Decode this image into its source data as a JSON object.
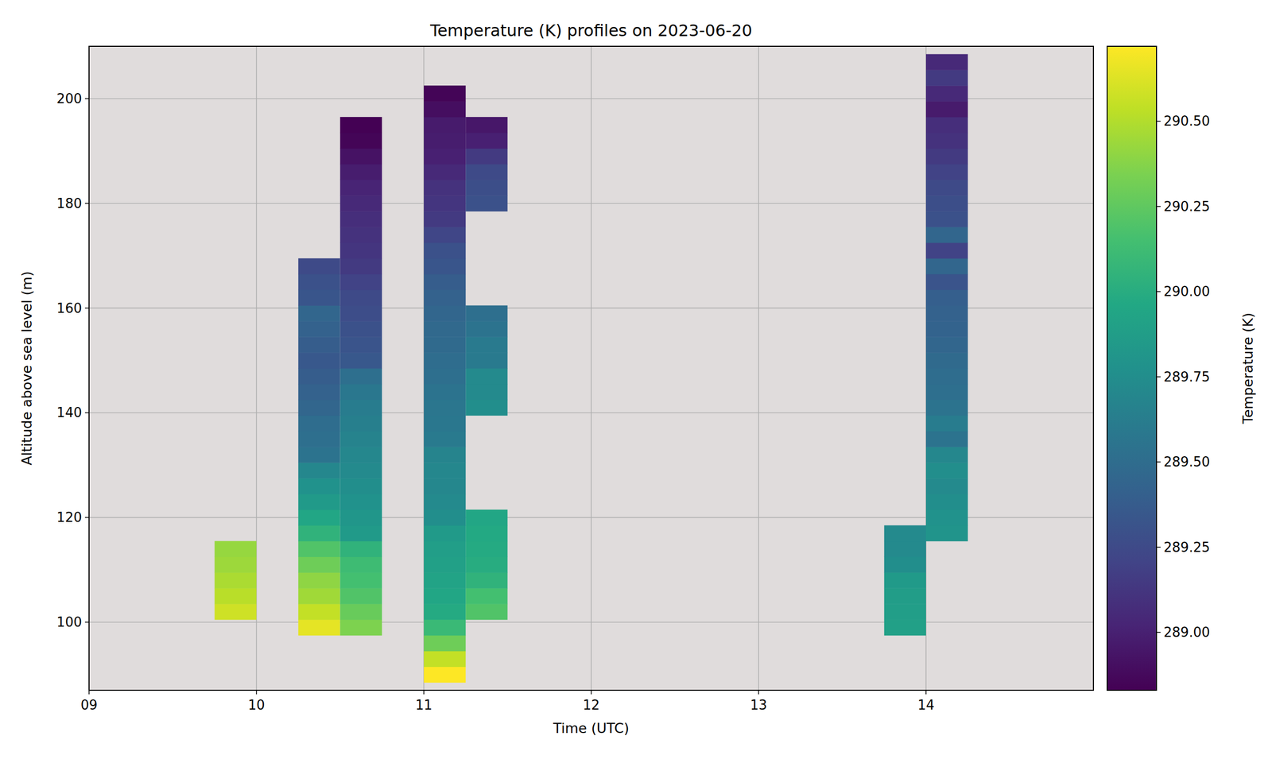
{
  "chart_data": {
    "type": "heatmap",
    "title": "Temperature (K) profiles on 2023-06-20",
    "x_label": "Time (UTC)",
    "y_label": "Altitude above sea level (m)",
    "xlim": [
      9,
      15
    ],
    "xticks": [
      {
        "value": 9,
        "label": "09"
      },
      10,
      11,
      12,
      13,
      14
    ],
    "ylim": [
      87,
      210
    ],
    "yticks": [
      100,
      120,
      140,
      160,
      180,
      200
    ],
    "grid": true,
    "colorbar": {
      "label": "Temperature (K)",
      "range": [
        288.83,
        290.72
      ],
      "ticks": [
        {
          "value": 289,
          "label": "289.00"
        },
        {
          "value": 289.25,
          "label": "289.25"
        },
        {
          "value": 289.5,
          "label": "289.50"
        },
        {
          "value": 289.75,
          "label": "289.75"
        },
        {
          "value": 290,
          "label": "290.00"
        },
        {
          "value": 290.25,
          "label": "290.25"
        },
        {
          "value": 290.5,
          "label": "290.50"
        }
      ]
    },
    "columns": [
      {
        "x0": 9.75,
        "x1": 10,
        "y_edges": [
          100.5,
          103.5,
          106.5,
          109.5,
          112.5,
          115.5
        ],
        "values": [
          290.58,
          290.52,
          290.48,
          290.44,
          290.42
        ]
      },
      {
        "x0": 10.25,
        "x1": 10.5,
        "y_edges": [
          97.5,
          100.5,
          103.5,
          106.5,
          109.5,
          112.5,
          115.5,
          118.5,
          121.5,
          124.5,
          127.5,
          130.5,
          133.5,
          136.5,
          139.5,
          142.5,
          145.5,
          148.5,
          151.5,
          154.5,
          157.5,
          160.5,
          163.5,
          166.5,
          169.5
        ],
        "values": [
          290.65,
          290.55,
          290.45,
          290.4,
          290.3,
          290.2,
          290.05,
          289.95,
          289.85,
          289.78,
          289.7,
          289.55,
          289.52,
          289.5,
          289.45,
          289.42,
          289.38,
          289.35,
          289.38,
          289.42,
          289.45,
          289.33,
          289.3,
          289.25
        ]
      },
      {
        "x0": 10.5,
        "x1": 10.75,
        "y_edges": [
          97.5,
          100.5,
          103.5,
          106.5,
          109.5,
          112.5,
          115.5,
          118.5,
          121.5,
          124.5,
          127.5,
          130.5,
          133.5,
          136.5,
          139.5,
          142.5,
          145.5,
          148.5,
          151.5,
          154.5,
          157.5,
          160.5,
          163.5,
          166.5,
          169.5,
          172.5,
          175.5,
          178.5,
          181.5,
          184.5,
          187.5,
          190.5,
          193.5,
          196.5
        ],
        "values": [
          290.35,
          290.28,
          290.2,
          290.15,
          290.12,
          290.05,
          289.85,
          289.82,
          289.78,
          289.75,
          289.72,
          289.7,
          289.67,
          289.64,
          289.62,
          289.58,
          289.52,
          289.35,
          289.32,
          289.3,
          289.27,
          289.25,
          289.2,
          289.15,
          289.12,
          289.1,
          289.08,
          289.05,
          289.02,
          288.98,
          288.92,
          288.85,
          288.83
        ]
      },
      {
        "x0": 11,
        "x1": 11.25,
        "y_edges": [
          88.5,
          91.5,
          94.5,
          97.5,
          100.5,
          103.5,
          106.5,
          109.5,
          112.5,
          115.5,
          118.5,
          121.5,
          124.5,
          127.5,
          130.5,
          133.5,
          136.5,
          139.5,
          142.5,
          145.5,
          148.5,
          151.5,
          154.5,
          157.5,
          160.5,
          163.5,
          166.5,
          169.5,
          172.5,
          175.5,
          178.5,
          181.5,
          184.5,
          187.5,
          190.5,
          193.5,
          196.5,
          199.5,
          202.5
        ],
        "values": [
          290.72,
          290.55,
          290.3,
          290.1,
          289.98,
          289.95,
          289.92,
          289.9,
          289.88,
          289.85,
          289.75,
          289.72,
          289.7,
          289.7,
          289.68,
          289.6,
          289.58,
          289.57,
          289.55,
          289.52,
          289.5,
          289.48,
          289.47,
          289.45,
          289.42,
          289.38,
          289.33,
          289.3,
          289.22,
          289.15,
          289.12,
          289.1,
          289.05,
          289.0,
          288.98,
          288.97,
          288.9,
          288.85
        ]
      },
      {
        "x0": 11.25,
        "x1": 11.5,
        "y_edges": [
          100.5,
          103.5,
          106.5,
          109.5,
          112.5,
          115.5,
          118.5,
          121.5,
          124.5,
          127.5,
          130.5,
          133.5,
          136.5,
          139.5,
          142.5,
          145.5,
          148.5,
          151.5,
          154.5,
          157.5,
          160.5,
          163.5,
          166.5,
          169.5,
          172.5,
          175.5,
          178.5,
          181.5,
          184.5,
          187.5,
          190.5,
          193.5,
          196.5
        ],
        "values": [
          290.2,
          290.15,
          290.05,
          290.0,
          289.98,
          289.97,
          289.95,
          null,
          null,
          null,
          null,
          null,
          null,
          289.75,
          289.72,
          289.72,
          289.6,
          289.6,
          289.55,
          289.52,
          null,
          null,
          null,
          null,
          null,
          null,
          289.3,
          289.28,
          289.25,
          289.15,
          289.0,
          288.95
        ]
      },
      {
        "x0": 13.75,
        "x1": 14,
        "y_edges": [
          97.5,
          100.5,
          103.5,
          106.5,
          109.5,
          112.5,
          115.5,
          118.5
        ],
        "values": [
          289.9,
          289.88,
          289.87,
          289.85,
          289.75,
          289.72,
          289.72
        ]
      },
      {
        "x0": 14,
        "x1": 14.25,
        "y_edges": [
          115.5,
          118.5,
          121.5,
          124.5,
          127.5,
          130.5,
          133.5,
          136.5,
          139.5,
          142.5,
          145.5,
          148.5,
          151.5,
          154.5,
          157.5,
          160.5,
          163.5,
          166.5,
          169.5,
          172.5,
          175.5,
          178.5,
          181.5,
          184.5,
          187.5,
          190.5,
          193.5,
          196.5,
          199.5,
          202.5,
          205.5,
          208.5
        ],
        "values": [
          289.8,
          289.78,
          289.75,
          289.72,
          289.75,
          289.7,
          289.55,
          289.62,
          289.55,
          289.52,
          289.5,
          289.48,
          289.45,
          289.43,
          289.42,
          289.4,
          289.32,
          289.45,
          289.2,
          289.45,
          289.3,
          289.28,
          289.25,
          289.2,
          289.15,
          289.1,
          289.08,
          288.97,
          289.05,
          289.15,
          289.05
        ]
      }
    ]
  }
}
